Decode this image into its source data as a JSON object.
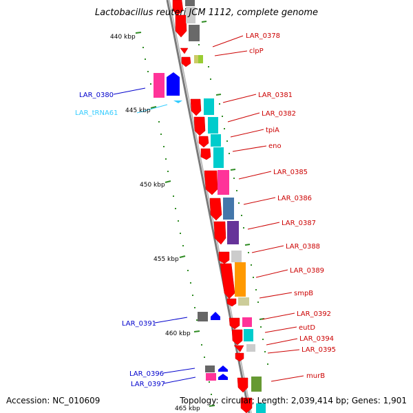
{
  "title": "Lactobacillus reuteri JCM 1112, complete genome",
  "footer": {
    "accession": "Accession: NC_010609",
    "summary": "Topology: circular; Length: 2,039,414 bp; Genes: 1,901"
  },
  "colors": {
    "forward_cds": "#ff0000",
    "reverse_cds": "#0000ff",
    "trna": "#33ccff",
    "backbone": "#808080",
    "tick": "#2e8b22"
  },
  "ticks": [
    "440 kbp",
    "445 kbp",
    "450 kbp",
    "455 kbp",
    "460 kbp",
    "465 kbp"
  ],
  "labels_right": [
    "LAR_0378",
    "clpP",
    "LAR_0381",
    "LAR_0382",
    "tpiA",
    "eno",
    "LAR_0385",
    "LAR_0386",
    "LAR_0387",
    "LAR_0388",
    "LAR_0389",
    "smpB",
    "LAR_0392",
    "eutD",
    "LAR_0394",
    "LAR_0395",
    "murB"
  ],
  "labels_left": [
    "LAR_0380",
    "LAR_tRNA61",
    "LAR_0391",
    "LAR_0396",
    "LAR_0397"
  ]
}
